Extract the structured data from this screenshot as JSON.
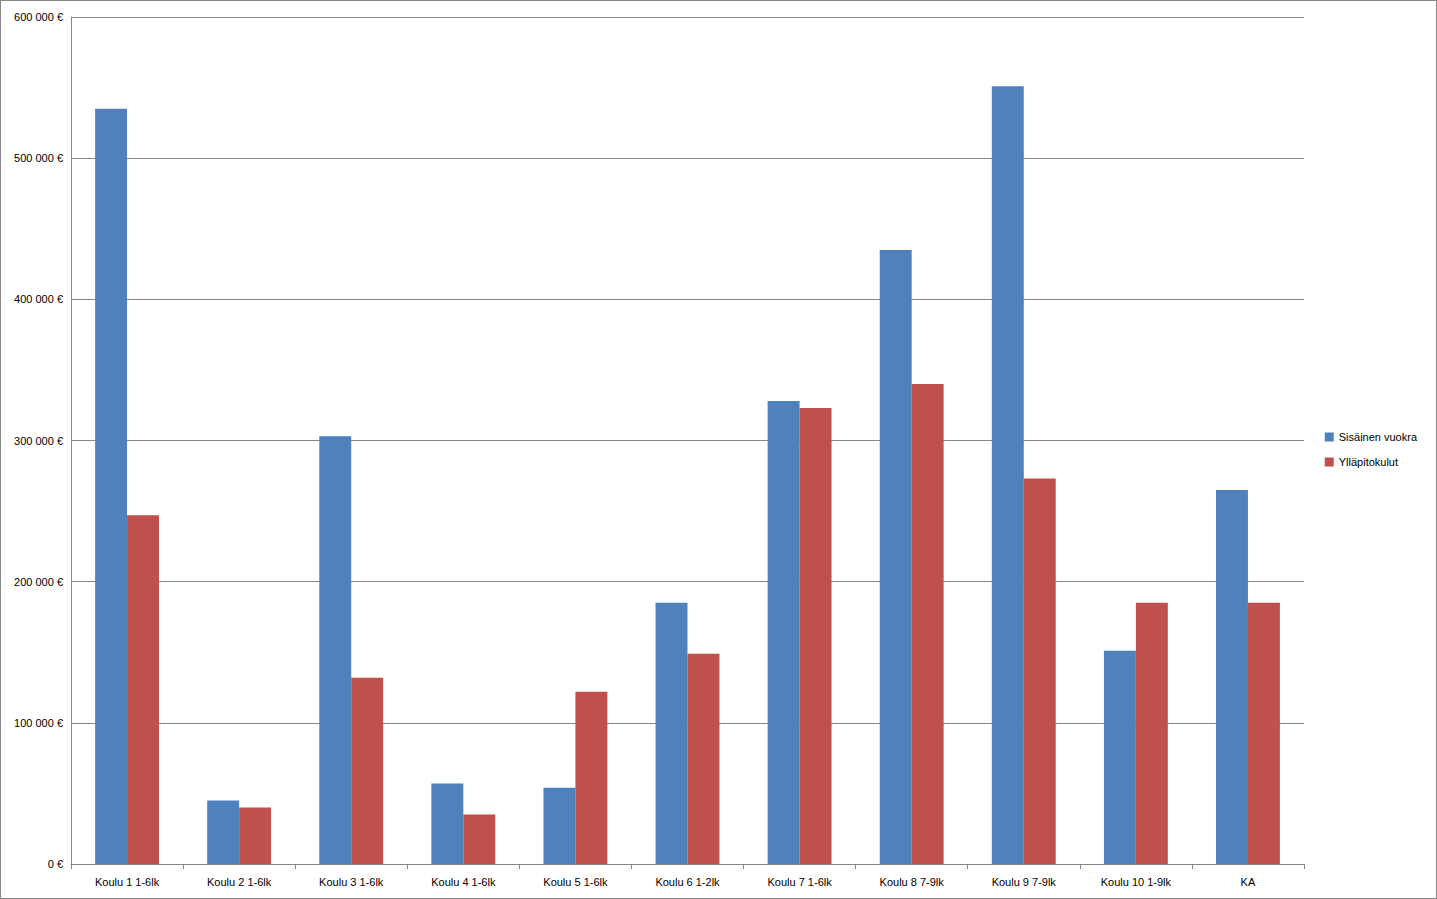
{
  "chart_data": {
    "type": "bar",
    "categories": [
      "Koulu 1 1-6lk",
      "Koulu 2 1-6lk",
      "Koulu 3 1-6lk",
      "Koulu 4 1-6lk",
      "Koulu 5 1-6lk",
      "Koulu 6 1-2lk",
      "Koulu 7 1-6lk",
      "Koulu 8 7-9lk",
      "Koulu 9 7-9lk",
      "Koulu 10 1-9lk",
      "KA"
    ],
    "series": [
      {
        "name": "Sisäinen vuokra",
        "color": "#4f81bd",
        "values": [
          535000,
          45000,
          303000,
          57000,
          54000,
          185000,
          328000,
          435000,
          551000,
          151000,
          265000
        ]
      },
      {
        "name": "Ylläpitokulut",
        "color": "#c0504d",
        "values": [
          247000,
          40000,
          132000,
          35000,
          122000,
          149000,
          323000,
          340000,
          273000,
          185000,
          185000
        ]
      }
    ],
    "ylim": [
      0,
      600000
    ],
    "yticks": [
      {
        "value": 0,
        "label": "0 €"
      },
      {
        "value": 100000,
        "label": "100 000 €"
      },
      {
        "value": 200000,
        "label": "200 000 €"
      },
      {
        "value": 300000,
        "label": "300 000 €"
      },
      {
        "value": 400000,
        "label": "400 000 €"
      },
      {
        "value": 500000,
        "label": "500 000 €"
      },
      {
        "value": 600000,
        "label": "600 000 €"
      }
    ],
    "grid": true,
    "legend": "right"
  }
}
